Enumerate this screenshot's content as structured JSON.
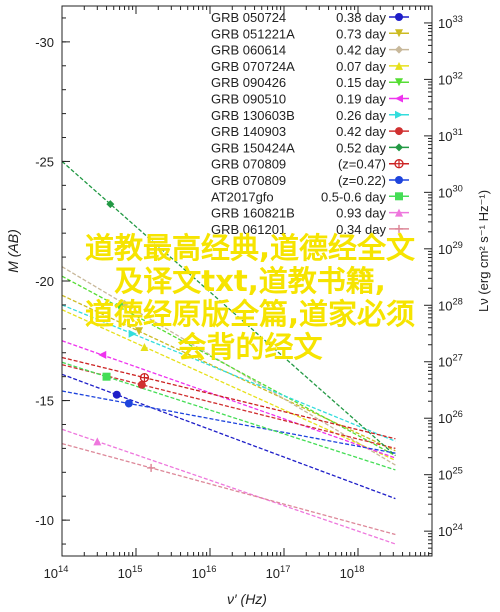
{
  "chart_data": {
    "type": "line",
    "title": "",
    "xlabel": "ν′ (Hz)",
    "ylabel_left": "M (AB)",
    "ylabel_right": "Lν (erg cm² s⁻¹ Hz⁻¹)",
    "x_scale": "log",
    "xlim": [
      100000000000000.0,
      1e+19
    ],
    "ylim_left": [
      -8.5,
      -31.5
    ],
    "ylim_right_log": [
      23.56,
      33.3
    ],
    "x_ticks": [
      {
        "label": "10",
        "exp": "14",
        "value": 100000000000000.0
      },
      {
        "label": "10",
        "exp": "15",
        "value": 1000000000000000.0
      },
      {
        "label": "10",
        "exp": "16",
        "value": 1e+16
      },
      {
        "label": "10",
        "exp": "17",
        "value": 1e+17
      },
      {
        "label": "10",
        "exp": "18",
        "value": 1e+18
      }
    ],
    "y_ticks_left": [
      -30,
      -25,
      -20,
      -15,
      -10
    ],
    "y_ticks_right": [
      {
        "label": "10",
        "exp": "24",
        "value": 24
      },
      {
        "label": "10",
        "exp": "25",
        "value": 25
      },
      {
        "label": "10",
        "exp": "26",
        "value": 26
      },
      {
        "label": "10",
        "exp": "27",
        "value": 27
      },
      {
        "label": "10",
        "exp": "28",
        "value": 28
      },
      {
        "label": "10",
        "exp": "29",
        "value": 29
      },
      {
        "label": "10",
        "exp": "30",
        "value": 30
      },
      {
        "label": "10",
        "exp": "31",
        "value": 31
      },
      {
        "label": "10",
        "exp": "32",
        "value": 32
      },
      {
        "label": "10",
        "exp": "33",
        "value": 33
      }
    ],
    "legend_position": "top-right",
    "series": [
      {
        "name": "GRB 050724",
        "z": "0.38 day",
        "color": "#1e1ec8",
        "marker": "circle",
        "x": [
          100000000000000.0,
          3.2e+18
        ],
        "y": [
          -16.1,
          -10.9
        ]
      },
      {
        "name": "GRB 051221A",
        "z": "0.73 day",
        "color": "#ccbb22",
        "marker": "triangle-down",
        "x": [
          100000000000000.0,
          3.2e+18
        ],
        "y": [
          -19.4,
          -12.9
        ]
      },
      {
        "name": "GRB 060614",
        "z": "0.42 day",
        "color": "#c8b89a",
        "marker": "diamond",
        "x": [
          100000000000000.0,
          3.2e+18
        ],
        "y": [
          -20.6,
          -12.3
        ]
      },
      {
        "name": "GRB 070724A",
        "z": "0.07 day",
        "color": "#e6e01a",
        "marker": "triangle-up",
        "x": [
          100000000000000.0,
          3.2e+18
        ],
        "y": [
          -18.8,
          -12.5
        ]
      },
      {
        "name": "GRB 090426",
        "z": "0.15 day",
        "color": "#55dd33",
        "marker": "triangle-down",
        "x": [
          100000000000000.0,
          3.2e+18
        ],
        "y": [
          -20.2,
          -12.7
        ]
      },
      {
        "name": "GRB 090510",
        "z": "0.19 day",
        "color": "#ee33ee",
        "marker": "triangle-left",
        "x": [
          100000000000000.0,
          3.2e+18
        ],
        "y": [
          -17.5,
          -12.6
        ]
      },
      {
        "name": "GRB 130603B",
        "z": "0.26 day",
        "color": "#33dddd",
        "marker": "triangle-right",
        "x": [
          100000000000000.0,
          3.2e+18
        ],
        "y": [
          -19.0,
          -13.3
        ]
      },
      {
        "name": "GRB 140903",
        "z": "0.42 day",
        "color": "#d03030",
        "marker": "circle",
        "x": [
          100000000000000.0,
          3.2e+18
        ],
        "y": [
          -16.5,
          -13.0
        ]
      },
      {
        "name": "GRB 150424A",
        "z": "0.52 day",
        "color": "#229944",
        "marker": "diamond",
        "x": [
          100000000000000.0,
          3.2e+18
        ],
        "y": [
          -25.0,
          -12.7
        ]
      },
      {
        "name": "GRB 070809",
        "z": "(z=0.47)",
        "color": "#cc2222",
        "marker": "circle-plus",
        "x": [
          100000000000000.0,
          3.2e+18
        ],
        "y": [
          -16.8,
          -13.4
        ]
      },
      {
        "name": "GRB 070809",
        "z": "(z=0.22)",
        "color": "#1e44dd",
        "marker": "circle",
        "x": [
          100000000000000.0,
          3.2e+18
        ],
        "y": [
          -15.4,
          -12.8
        ]
      },
      {
        "name": "AT2017gfo",
        "z": "0.5-0.6 day",
        "color": "#44dd55",
        "marker": "square",
        "x": [
          100000000000000.0,
          3.2e+18
        ],
        "y": [
          -16.6,
          -12.1
        ]
      },
      {
        "name": "GRB 160821B",
        "z": "0.93 day",
        "color": "#ee77dd",
        "marker": "triangle-up",
        "x": [
          100000000000000.0,
          3.2e+18
        ],
        "y": [
          -13.8,
          -9.0
        ]
      },
      {
        "name": "GRB 061201",
        "z": "0.34 day",
        "color": "#dd8899",
        "marker": "plus",
        "x": [
          100000000000000.0,
          3.2e+18
        ],
        "y": [
          -13.2,
          -9.4
        ]
      }
    ],
    "overlay_text": [
      "道教最高经典,道德经全文",
      "及译文txt,道教书籍,",
      "道德经原版全篇,道家必须",
      "会背的经文"
    ]
  }
}
